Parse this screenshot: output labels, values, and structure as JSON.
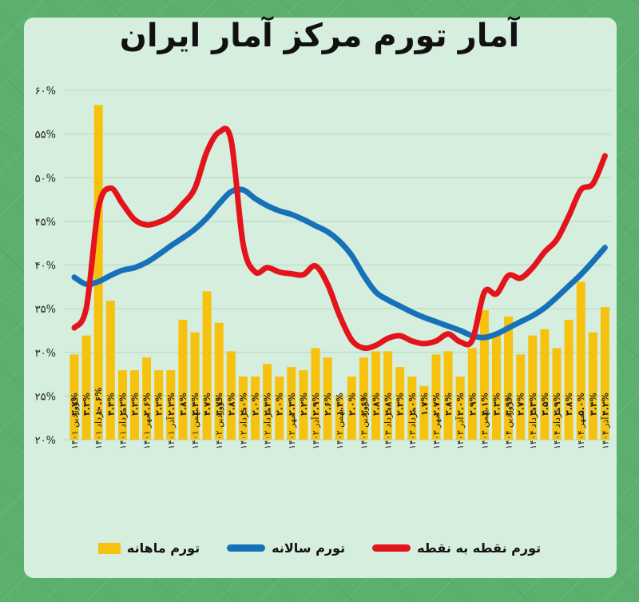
{
  "title": "آمار تورم مرکز آمار ایران",
  "colors": {
    "monthly": "#f7c10f",
    "annual": "#1671b9",
    "point_to_point": "#e3141c",
    "grid": "#b9d8c2"
  },
  "legend": [
    {
      "label": "تورم نقطه به نقطه",
      "key": "point_to_point"
    },
    {
      "label": "تورم سالانه",
      "key": "annual"
    },
    {
      "label": "تورم ماهانه",
      "key": "monthly"
    }
  ],
  "chart_data": {
    "type": "bar+line",
    "title": "آمار تورم مرکز آمار ایران",
    "xlabel": "",
    "ylabel": "",
    "ylim": [
      20,
      60
    ],
    "yticks": [
      "۲۰%",
      "۲۵%",
      "۳۰%",
      "۳۵%",
      "۴۰%",
      "۴۵%",
      "۵۰%",
      "۵۵%",
      "۶۰%"
    ],
    "grid": true,
    "legend_position": "bottom",
    "x_tick_labels": [
      "فروردین ۱۴۰۱",
      "خرداد ۱۴۰۱",
      "مرداد ۱۴۰۱",
      "مهر ۱۴۰۱",
      "آذر ۱۴۰۱",
      "بهمن ۱۴۰۱",
      "فروردین ۱۴۰۲",
      "خرداد ۱۴۰۲",
      "مرداد ۱۴۰۲",
      "مهر ۱۴۰۲",
      "آذر ۱۴۰۲",
      "بهمن ۱۴۰۲",
      "فروردین ۱۴۰۳",
      "خرداد ۱۴۰۳",
      "مرداد ۱۴۰۳",
      "مهر ۱۴۰۳",
      "آذر ۱۴۰۳",
      "بهمن ۱۴۰۳",
      "فروردین ۱۴۰۴",
      "خرداد ۱۴۰۴",
      "مرداد ۱۴۰۴",
      "مهر ۱۴۰۴",
      "آذر ۱۴۰۴"
    ],
    "series": [
      {
        "name": "تورم ماهانه",
        "type": "bar",
        "values": [
          2.7,
          3.3,
          10.6,
          4.4,
          2.2,
          2.2,
          2.6,
          2.2,
          2.2,
          3.8,
          3.4,
          4.7,
          3.7,
          2.8,
          2.0,
          2.0,
          2.4,
          2.0,
          2.3,
          2.2,
          2.9,
          2.6,
          1.4,
          2.0,
          2.6,
          2.8,
          2.8,
          2.3,
          2.0,
          1.7,
          2.7,
          2.8,
          2.0,
          2.9,
          4.1,
          3.3,
          3.9,
          2.7,
          3.3,
          3.5,
          2.9,
          3.8,
          5.0,
          3.4,
          4.2
        ],
        "labels": [
          "۲.۷%",
          "۳.۳%",
          "۱۰.۶%",
          "۴.۴%",
          "۲.۲%",
          "۲.۲%",
          "۲.۶%",
          "۲.۲%",
          "۲.۲%",
          "۳.۸%",
          "۳.۴%",
          "۴.۷%",
          "۳.۷%",
          "۲.۸%",
          "۲.۰%",
          "۲.۰%",
          "۲.۴%",
          "۲.۰%",
          "۲.۳%",
          "۲.۲%",
          "۲.۹%",
          "۲.۶%",
          "۱.۴%",
          "۲.۰%",
          "۲.۶%",
          "۲.۸%",
          "۲.۸%",
          "۲.۳%",
          "۲.۰%",
          "۱.۷%",
          "۲.۷%",
          "۲.۸%",
          "۲.۰%",
          "۲.۹%",
          "۴.۱%",
          "۳.۳%",
          "۳.۹%",
          "۲.۷%",
          "۳.۳%",
          "۳.۵%",
          "۲.۹%",
          "۳.۸%",
          "۵.۰%",
          "۳.۴%",
          "۴.۲%"
        ]
      },
      {
        "name": "تورم سالانه",
        "type": "line",
        "values": [
          38.6,
          37.8,
          38.1,
          38.8,
          39.4,
          39.7,
          40.3,
          41.2,
          42.2,
          43.1,
          44.1,
          45.4,
          47.0,
          48.4,
          48.6,
          47.6,
          46.8,
          46.2,
          45.8,
          45.2,
          44.5,
          43.8,
          42.7,
          41.1,
          38.8,
          36.9,
          36.0,
          35.3,
          34.6,
          34.0,
          33.5,
          33.0,
          32.5,
          31.9,
          31.7,
          32.1,
          32.8,
          33.5,
          34.2,
          35.1,
          36.3,
          37.6,
          38.9,
          40.4,
          42.0
        ]
      },
      {
        "name": "تورم نقطه به نقطه",
        "type": "line",
        "values": [
          32.8,
          35.1,
          46.5,
          48.8,
          47.0,
          45.2,
          44.6,
          44.9,
          45.6,
          47.0,
          48.8,
          53.0,
          55.2,
          54.3,
          42.4,
          39.2,
          39.7,
          39.2,
          39.0,
          38.9,
          39.9,
          37.8,
          34.2,
          31.4,
          30.5,
          30.8,
          31.6,
          31.9,
          31.3,
          31.0,
          31.3,
          32.1,
          31.2,
          31.4,
          36.9,
          36.7,
          38.8,
          38.5,
          39.7,
          41.5,
          42.9,
          45.6,
          48.6,
          49.3,
          52.5
        ]
      }
    ]
  }
}
